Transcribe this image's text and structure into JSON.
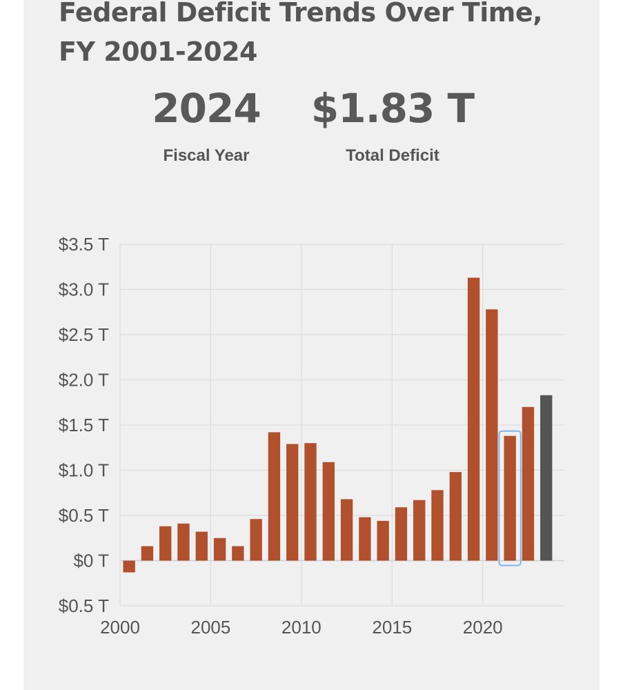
{
  "header": {
    "title": "Federal Deficit Trends Over Time, FY 2001-2024"
  },
  "stats": {
    "year_value": "2024",
    "year_label": "Fiscal Year",
    "deficit_value": "$1.83 T",
    "deficit_label": "Total Deficit"
  },
  "chart_data": {
    "type": "bar",
    "title": "Federal Deficit Trends Over Time, FY 2001-2024",
    "xlabel": "",
    "ylabel": "",
    "x": [
      2001,
      2002,
      2003,
      2004,
      2005,
      2006,
      2007,
      2008,
      2009,
      2010,
      2011,
      2012,
      2013,
      2014,
      2015,
      2016,
      2017,
      2018,
      2019,
      2020,
      2021,
      2022,
      2023,
      2024
    ],
    "values": [
      -0.13,
      0.16,
      0.38,
      0.41,
      0.32,
      0.25,
      0.16,
      0.46,
      1.42,
      1.29,
      1.3,
      1.09,
      0.68,
      0.48,
      0.44,
      0.59,
      0.67,
      0.78,
      0.98,
      3.13,
      2.78,
      1.38,
      1.7,
      1.83
    ],
    "xlim": [
      2000,
      2024.5
    ],
    "ylim": [
      -0.5,
      3.5
    ],
    "x_ticks": [
      2000,
      2005,
      2010,
      2015,
      2020
    ],
    "x_tick_labels": [
      "2000",
      "2005",
      "2010",
      "2015",
      "2020"
    ],
    "y_ticks": [
      -0.5,
      0,
      0.5,
      1.0,
      1.5,
      2.0,
      2.5,
      3.0,
      3.5
    ],
    "y_tick_labels": [
      "$0.5 T",
      "$0 T",
      "$0.5 T",
      "$1.0 T",
      "$1.5 T",
      "$2.0 T",
      "$2.5 T",
      "$3.0 T",
      "$3.5 T"
    ],
    "grid": true,
    "highlighted_year": 2024,
    "hovered_year": 2022,
    "colors": {
      "bar": "#b0502c",
      "highlight": "#555555",
      "hover_outline": "#7fb4e8",
      "grid": "#dcdcdc"
    }
  }
}
